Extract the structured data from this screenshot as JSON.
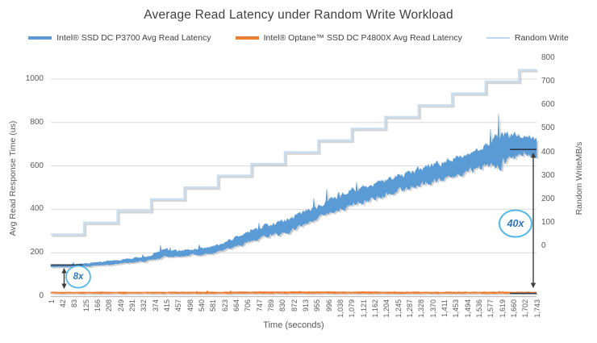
{
  "chart_data": {
    "type": "line",
    "title": "Average Read Latency under Random Write Workload",
    "xlabel": "Time (seconds)",
    "ylabel_left": "Avg Read Response Time (us)",
    "ylabel_right": "Random WriteMB/s",
    "legend_position": "top",
    "grid": "horizontal",
    "x_range_seconds": [
      1,
      1743
    ],
    "x_tick_labels": [
      "1",
      "42",
      "83",
      "125",
      "166",
      "208",
      "249",
      "291",
      "332",
      "374",
      "415",
      "457",
      "498",
      "540",
      "581",
      "623",
      "664",
      "706",
      "747",
      "789",
      "830",
      "872",
      "913",
      "955",
      "996",
      "1,038",
      "1,079",
      "1,121",
      "1,162",
      "1,204",
      "1,245",
      "1,287",
      "1,328",
      "1,370",
      "1,411",
      "1,453",
      "1,494",
      "1,536",
      "1,577",
      "1,619",
      "1,660",
      "1,702",
      "1,743"
    ],
    "left_axis": {
      "min": 0,
      "max": 1000,
      "tick_step": 200
    },
    "right_axis": {
      "min": 0,
      "max": 800,
      "tick_step": 100
    },
    "series": [
      {
        "id": "p3700",
        "name": "Intel® SSD DC P3700 Avg Read Latency",
        "color": "#5B9BD5",
        "axis": "left",
        "style": "noisy-band",
        "trend_t_mean_amp_us": [
          [
            1,
            140,
            6
          ],
          [
            70,
            140,
            6
          ],
          [
            140,
            146,
            8
          ],
          [
            210,
            153,
            10
          ],
          [
            280,
            163,
            11
          ],
          [
            350,
            174,
            13
          ],
          [
            410,
            200,
            24
          ],
          [
            455,
            196,
            15
          ],
          [
            520,
            204,
            17
          ],
          [
            590,
            215,
            19
          ],
          [
            655,
            246,
            24
          ],
          [
            720,
            280,
            30
          ],
          [
            790,
            303,
            32
          ],
          [
            860,
            330,
            34
          ],
          [
            930,
            374,
            35
          ],
          [
            1000,
            408,
            36
          ],
          [
            1080,
            455,
            40
          ],
          [
            1160,
            480,
            42
          ],
          [
            1240,
            515,
            44
          ],
          [
            1320,
            548,
            46
          ],
          [
            1400,
            576,
            48
          ],
          [
            1480,
            610,
            50
          ],
          [
            1560,
            645,
            55
          ],
          [
            1615,
            668,
            85
          ],
          [
            1660,
            692,
            62
          ],
          [
            1700,
            706,
            55
          ],
          [
            1743,
            686,
            50
          ]
        ]
      },
      {
        "id": "p4800x",
        "name": "Intel® Optane™ SSD DC P4800X Avg Read Latency",
        "color": "#ED7D31",
        "axis": "left",
        "style": "noisy-band",
        "trend_t_mean_amp_us": [
          [
            1,
            16,
            3.5
          ],
          [
            500,
            16,
            4
          ],
          [
            900,
            17,
            4.5
          ],
          [
            1300,
            16,
            4
          ],
          [
            1743,
            16,
            4
          ]
        ]
      },
      {
        "id": "random-write",
        "name": "Random Write",
        "color": "#BDD7EE",
        "axis": "right",
        "style": "step",
        "steps_t_mbps": [
          [
            1,
            50
          ],
          [
            120,
            100
          ],
          [
            240,
            150
          ],
          [
            360,
            200
          ],
          [
            480,
            250
          ],
          [
            600,
            300
          ],
          [
            720,
            350
          ],
          [
            840,
            400
          ],
          [
            960,
            450
          ],
          [
            1080,
            500
          ],
          [
            1200,
            550
          ],
          [
            1320,
            600
          ],
          [
            1440,
            650
          ],
          [
            1560,
            700
          ],
          [
            1680,
            750
          ]
        ]
      }
    ],
    "avg_markers": [
      {
        "series": "p3700",
        "t": [
          1,
          115
        ],
        "value_us": 144
      },
      {
        "series": "p3700",
        "t": [
          1648,
          1743
        ],
        "value_us": 676
      },
      {
        "series": "p4800x",
        "t": [
          1648,
          1743
        ],
        "value_us": 13
      }
    ],
    "annotations": [
      {
        "label": "8x"
      },
      {
        "label": "40x"
      }
    ]
  },
  "colors": {
    "grid": "#d9d9d9",
    "axis_line": "#bdbdbd",
    "tick_text": "#595959",
    "title_text": "#3f3f3f",
    "annotation_text": "#2e75b6",
    "annotation_ring": "#55b8e6",
    "marker_line": "#2b3a4d",
    "arrow": "#3d3d3d",
    "shadow": "#8e8e8e"
  }
}
